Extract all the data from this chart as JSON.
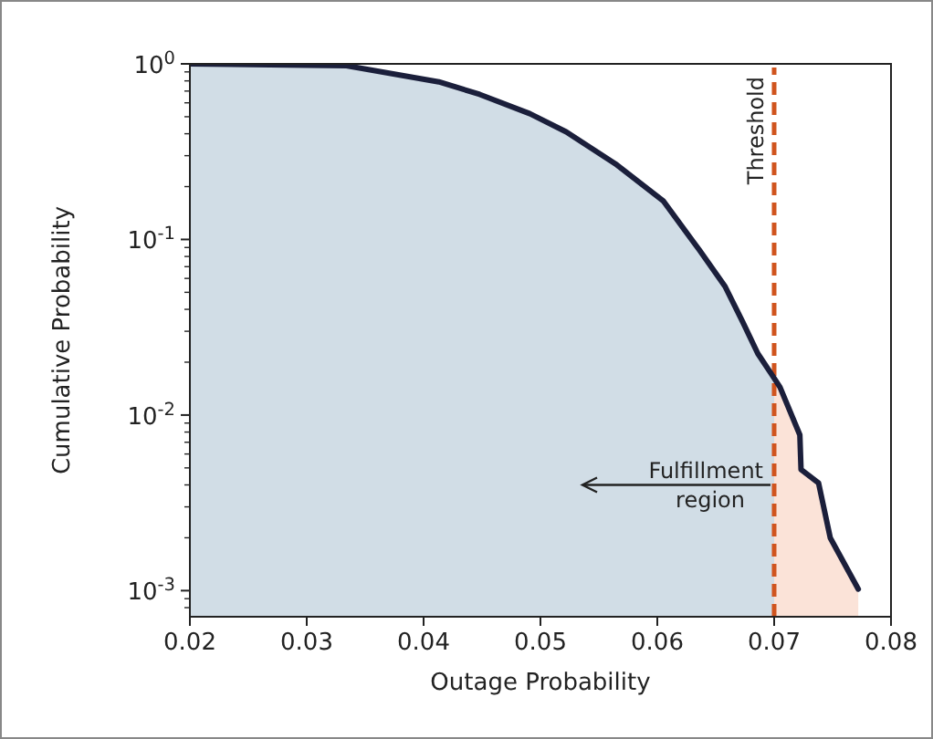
{
  "chart_data": {
    "type": "area",
    "xlabel": "Outage Probability",
    "ylabel": "Cumulative Probability",
    "log": "y",
    "grid": false,
    "xlim": [
      0.02,
      0.08
    ],
    "xticks": [
      0.02,
      0.03,
      0.04,
      0.05,
      0.06,
      0.07,
      0.08
    ],
    "ylim": [
      0.00071,
      1
    ],
    "yticks": [
      {
        "value": 1,
        "label": "10$^{0}$"
      },
      {
        "value": 0.1,
        "label": "10$^{-1}$"
      },
      {
        "value": 0.01,
        "label": "10$^{-2}$"
      },
      {
        "value": 0.001,
        "label": "10$^{-3}$"
      }
    ],
    "series": [
      {
        "color": "#d1dde6",
        "x": [
          0.02,
          0.0334,
          0.0413,
          0.0448,
          0.0491,
          0.0522,
          0.0564,
          0.0605,
          0.0636,
          0.0658,
          0.0673,
          0.0686,
          0.0698,
          0.07
        ],
        "values": [
          1,
          0.976,
          0.79,
          0.67,
          0.52,
          0.41,
          0.27,
          0.166,
          0.087,
          0.054,
          0.034,
          0.0224,
          0.017,
          0.0155
        ]
      },
      {
        "color": "#fbe3d8",
        "x": [
          0.07,
          0.0705,
          0.0722,
          0.0723,
          0.0738,
          0.0748,
          0.0772
        ],
        "values": [
          0.0155,
          0.0144,
          0.0077,
          0.0049,
          0.0041,
          0.002,
          0.00102
        ]
      },
      {
        "type": "line",
        "color": "#1b1f3b",
        "x": [
          0.02,
          0.0334,
          0.0413,
          0.0448,
          0.0491,
          0.0522,
          0.0564,
          0.0605,
          0.0636,
          0.0658,
          0.0673,
          0.0686,
          0.0698,
          0.0705,
          0.0722,
          0.0723,
          0.0738,
          0.0748,
          0.0772
        ],
        "values": [
          1,
          0.976,
          0.79,
          0.67,
          0.52,
          0.41,
          0.27,
          0.166,
          0.087,
          0.054,
          0.034,
          0.0224,
          0.017,
          0.0144,
          0.0077,
          0.0049,
          0.0041,
          0.002,
          0.00102
        ]
      }
    ],
    "ref_lines": [
      {
        "axis": "x",
        "value": 0.07,
        "label": "Threshold",
        "color": "#d0541e",
        "line_style": "dashed"
      }
    ],
    "annotations": [
      {
        "text": "Fulfillment region",
        "x": 0.07,
        "y": 0.004
      }
    ]
  }
}
